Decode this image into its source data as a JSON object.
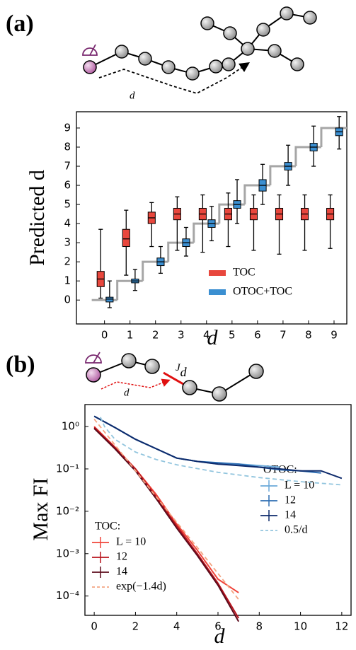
{
  "chart_data": [
    {
      "type": "box",
      "label": "(a)",
      "annotations": [
        "d"
      ],
      "xlabel": "d",
      "ylabel": "Predicted d",
      "x": [
        0,
        1,
        2,
        3,
        4,
        5,
        6,
        7,
        8,
        9
      ],
      "xlim": [
        -1.1,
        9.5
      ],
      "xticks": [
        0,
        1,
        2,
        3,
        4,
        5,
        6,
        7,
        8,
        9
      ],
      "ylim": [
        -1.25,
        9.85
      ],
      "yticks": [
        0,
        1,
        2,
        3,
        4,
        5,
        6,
        7,
        8,
        9
      ],
      "reference": {
        "color": "#a6a6a6",
        "values": [
          0,
          1,
          2,
          3,
          4,
          5,
          6,
          7,
          8,
          9
        ]
      },
      "legend": "lower right",
      "series": [
        {
          "name": "TOC",
          "color": "#e8473d",
          "median": [
            1.1,
            3.2,
            4.3,
            4.5,
            4.5,
            4.5,
            4.5,
            4.5,
            4.5,
            4.5
          ],
          "q1": [
            0.7,
            2.8,
            4.0,
            4.2,
            4.2,
            4.2,
            4.2,
            4.2,
            4.2,
            4.2
          ],
          "q3": [
            1.5,
            3.7,
            4.6,
            4.8,
            4.8,
            4.8,
            4.8,
            4.8,
            4.8,
            4.8
          ],
          "low": [
            0.1,
            1.3,
            2.8,
            2.6,
            2.5,
            2.8,
            2.6,
            2.4,
            2.6,
            2.7
          ],
          "high": [
            3.7,
            4.7,
            5.1,
            5.4,
            5.5,
            5.6,
            5.5,
            5.5,
            5.5,
            5.5
          ]
        },
        {
          "name": "OTOC+TOC",
          "color": "#3b8fd1",
          "median": [
            0.05,
            1.0,
            2.0,
            3.0,
            4.0,
            5.0,
            6.0,
            7.0,
            8.0,
            8.8
          ],
          "q1": [
            -0.1,
            0.9,
            1.8,
            2.8,
            3.8,
            4.8,
            5.7,
            6.8,
            7.8,
            8.6
          ],
          "q3": [
            0.15,
            1.1,
            2.2,
            3.2,
            4.2,
            5.2,
            6.3,
            7.2,
            8.2,
            9.0
          ],
          "low": [
            -0.4,
            0.5,
            1.4,
            2.3,
            3.1,
            4.0,
            5.0,
            6.0,
            7.0,
            7.9
          ],
          "high": [
            1.0,
            1.6,
            2.8,
            3.8,
            4.9,
            6.3,
            7.1,
            8.1,
            9.1,
            9.6
          ]
        }
      ]
    },
    {
      "type": "line",
      "label": "(b)",
      "annotations": [
        {
          "text": "J",
          "subscript": "d"
        },
        "d"
      ],
      "xlabel": "d",
      "ylabel": "Max FI",
      "yscale": "log",
      "xlim": [
        -0.45,
        12.45
      ],
      "xticks": [
        0,
        2,
        4,
        6,
        8,
        10,
        12
      ],
      "ylim": [
        3.5e-05,
        3.3
      ],
      "yticks": [
        {
          "value": 0.0001,
          "label": "10⁻⁴"
        },
        {
          "value": 0.001,
          "label": "10⁻³"
        },
        {
          "value": 0.01,
          "label": "10⁻²"
        },
        {
          "value": 0.1,
          "label": "10⁻¹"
        },
        {
          "value": 1,
          "label": "10⁰"
        }
      ],
      "series_groups": [
        {
          "title": "TOC:",
          "series": [
            {
              "name": "L = 10",
              "color": "#f0443a",
              "x": [
                0,
                1,
                2,
                3,
                4,
                5,
                6,
                7
              ],
              "values": [
                1.0,
                0.33,
                0.1,
                0.025,
                0.005,
                0.0012,
                0.00025,
                0.00012
              ]
            },
            {
              "name": "12",
              "color": "#b8131c",
              "x": [
                0,
                1,
                2,
                3,
                4,
                5,
                6,
                7
              ],
              "values": [
                0.95,
                0.32,
                0.1,
                0.022,
                0.0045,
                0.001,
                0.0002,
                3e-05
              ]
            },
            {
              "name": "14",
              "color": "#5c0b1c",
              "x": [
                0,
                1,
                2,
                3,
                4,
                5,
                6,
                7
              ],
              "values": [
                0.9,
                0.3,
                0.09,
                0.02,
                0.004,
                0.0009,
                0.00018,
                2.5e-05
              ]
            },
            {
              "name": "exp(−1.4d)",
              "color": "#f4a582",
              "style": "dashed",
              "x": [
                0,
                1,
                2,
                3,
                4,
                5,
                6,
                7
              ],
              "values": [
                1.5,
                0.37,
                0.091,
                0.022,
                0.0055,
                0.0014,
                0.00034,
                8.3e-05
              ]
            }
          ]
        },
        {
          "title": "OTOC:",
          "series": [
            {
              "name": "L = 10",
              "color": "#6aa8d8",
              "x": [
                0,
                1,
                2,
                3,
                4,
                5,
                6,
                7,
                8,
                9
              ],
              "values": [
                1.75,
                0.95,
                0.5,
                0.3,
                0.18,
                0.15,
                0.13,
                0.13,
                0.12,
                0.11
              ]
            },
            {
              "name": "12",
              "color": "#2e6eb3",
              "x": [
                0,
                1,
                2,
                3,
                4,
                5,
                6,
                7,
                8,
                9,
                10,
                11
              ],
              "values": [
                1.75,
                0.95,
                0.5,
                0.3,
                0.18,
                0.15,
                0.14,
                0.13,
                0.11,
                0.095,
                0.09,
                0.08
              ]
            },
            {
              "name": "14",
              "color": "#0d2a6b",
              "x": [
                0,
                1,
                2,
                3,
                4,
                5,
                6,
                7,
                8,
                9,
                10,
                11,
                12
              ],
              "values": [
                1.75,
                0.95,
                0.5,
                0.3,
                0.18,
                0.15,
                0.13,
                0.12,
                0.11,
                0.1,
                0.09,
                0.09,
                0.06
              ]
            },
            {
              "name": "0.5/d",
              "color": "#92c5de",
              "style": "dashed",
              "x": [
                0.3,
                0.5,
                1,
                2,
                3,
                4,
                6,
                8,
                10,
                12
              ],
              "values": [
                1.67,
                1,
                0.5,
                0.25,
                0.167,
                0.125,
                0.083,
                0.0625,
                0.05,
                0.042
              ]
            }
          ]
        }
      ]
    }
  ]
}
